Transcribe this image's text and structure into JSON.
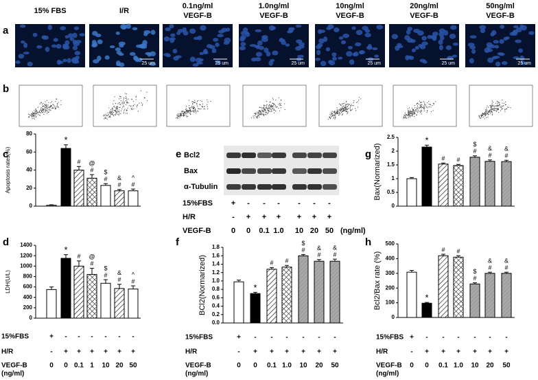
{
  "panel_letters": [
    "a",
    "b",
    "c",
    "d",
    "e",
    "f",
    "g",
    "h"
  ],
  "a": {
    "titles": [
      [
        "15% FBS"
      ],
      [
        "I/R"
      ],
      [
        "0.1ng/ml",
        "VEGF-B"
      ],
      [
        "1.0ng/ml",
        "VEGF-B"
      ],
      [
        "10ng/ml",
        "VEGF-B"
      ],
      [
        "20ng/ml",
        "VEGF-B"
      ],
      [
        "50ng/ml",
        "VEGF-B"
      ]
    ],
    "scale_label": "25 um"
  },
  "e": {
    "bands": [
      "Bcl2",
      "Bax",
      "α-Tubulin"
    ],
    "conditions": [
      {
        "label": "15%FBS",
        "values": [
          "+",
          "-",
          "-",
          "-",
          "-",
          "-",
          "-"
        ]
      },
      {
        "label": "H/R",
        "values": [
          "-",
          "+",
          "+",
          "+",
          "+",
          "+",
          "+"
        ]
      },
      {
        "label": "VEGF-B",
        "values": [
          "0",
          "0",
          "0.1",
          "1.0",
          "10",
          "20",
          "50"
        ]
      }
    ],
    "unit": "(ng/ml)"
  },
  "chart_data": [
    {
      "type": "bar",
      "ylabel": "Apoptosis rates(%)",
      "values": [
        1,
        64,
        40,
        31,
        23,
        17,
        17
      ],
      "errors": [
        0.5,
        4,
        4,
        4,
        2,
        1.5,
        2
      ],
      "annotations": [
        null,
        [
          "*"
        ],
        [
          "#"
        ],
        [
          "@",
          "#"
        ],
        [
          "$",
          "#"
        ],
        [
          "&",
          "#"
        ],
        [
          "^",
          "#"
        ]
      ],
      "fills": [
        "white",
        "black",
        "hatch",
        "cross",
        "white",
        "hatch",
        "white"
      ],
      "ylim": [
        0,
        80
      ],
      "yticks": [
        0,
        20,
        40,
        60,
        80
      ]
    },
    {
      "type": "bar",
      "ylabel": "LDH(U/L)",
      "values": [
        550,
        1150,
        1000,
        840,
        670,
        570,
        560
      ],
      "errors": [
        50,
        70,
        100,
        120,
        70,
        80,
        60
      ],
      "annotations": [
        null,
        [
          "*"
        ],
        [
          "#"
        ],
        [
          "@",
          "#"
        ],
        [
          "$",
          "#"
        ],
        [
          "&",
          "#"
        ],
        [
          "^",
          "#"
        ]
      ],
      "fills": [
        "white",
        "black",
        "hatch",
        "cross",
        "white",
        "hatch",
        "white"
      ],
      "ylim": [
        0,
        1400
      ],
      "yticks": [
        0,
        200,
        400,
        600,
        800,
        1000,
        1200,
        1400
      ],
      "conditions": [
        {
          "label": "15%FBS",
          "values": [
            "+",
            "-",
            "-",
            "-",
            "-",
            "-",
            "-"
          ]
        },
        {
          "label": "H/R",
          "values": [
            "-",
            "+",
            "+",
            "+",
            "+",
            "+",
            "+"
          ]
        },
        {
          "label": "VEGF-B",
          "unit": "(ng/ml)",
          "values": [
            "0",
            "0",
            "0.1",
            "1",
            "10",
            "20",
            "50"
          ]
        }
      ]
    },
    {
      "type": "bar",
      "ylabel": "BCl2(Normarized)",
      "values": [
        0.98,
        0.7,
        1.28,
        1.33,
        1.6,
        1.47,
        1.47
      ],
      "errors": [
        0.04,
        0.03,
        0.04,
        0.04,
        0.03,
        0.04,
        0.05
      ],
      "annotations": [
        null,
        [
          "*"
        ],
        [
          "#"
        ],
        [
          "#"
        ],
        [
          "$",
          "#"
        ],
        [
          "&",
          "#"
        ],
        [
          "&",
          "#"
        ]
      ],
      "fills": [
        "white",
        "black",
        "hatch",
        "cross",
        "gray",
        "gray",
        "gray"
      ],
      "ylim": [
        0,
        1.8
      ],
      "yticks": [
        {
          "value": 0,
          "label": "0.0"
        },
        0.2,
        0.4,
        0.6,
        0.8,
        {
          "value": 1,
          "label": "1.0"
        },
        1.2,
        1.4,
        1.6,
        1.8
      ],
      "conditions": [
        {
          "label": "15%FBS",
          "values": [
            "+",
            "-",
            "-",
            "-",
            "-",
            "-",
            "-"
          ]
        },
        {
          "label": "H/R",
          "values": [
            "-",
            "+",
            "+",
            "+",
            "+",
            "+",
            "+"
          ]
        },
        {
          "label": "VEGF-B",
          "unit": "(ng/ml)",
          "values": [
            "0",
            "0",
            "0.1",
            "1.0",
            "10",
            "20",
            "50"
          ]
        }
      ]
    },
    {
      "type": "bar",
      "ylabel": "Bax(Normarized)",
      "values": [
        1.0,
        2.15,
        1.53,
        1.48,
        1.78,
        1.63,
        1.62
      ],
      "errors": [
        0.04,
        0.07,
        0.04,
        0.04,
        0.05,
        0.05,
        0.05
      ],
      "annotations": [
        null,
        [
          "*"
        ],
        [
          "#"
        ],
        [
          "#"
        ],
        [
          "$",
          "#"
        ],
        [
          "&",
          "#"
        ],
        [
          "&",
          "#"
        ]
      ],
      "fills": [
        "white",
        "black",
        "hatch",
        "cross",
        "gray",
        "gray",
        "gray"
      ],
      "ylim": [
        0,
        2.5
      ],
      "yticks": [
        0,
        0.5,
        1,
        1.5,
        2,
        2.5
      ]
    },
    {
      "type": "bar",
      "ylabel": "Bcl2/Bax rate (%)",
      "values": [
        308,
        97,
        420,
        410,
        228,
        300,
        300
      ],
      "errors": [
        12,
        5,
        10,
        10,
        8,
        8,
        8
      ],
      "annotations": [
        null,
        [
          "*"
        ],
        [
          "#"
        ],
        [
          "#"
        ],
        [
          "$",
          "#"
        ],
        [
          "&",
          "#"
        ],
        [
          "&",
          "#"
        ]
      ],
      "fills": [
        "white",
        "black",
        "hatch",
        "cross",
        "gray",
        "gray",
        "gray"
      ],
      "ylim": [
        0,
        500
      ],
      "yticks": [
        0,
        100,
        200,
        300,
        400,
        500
      ],
      "conditions": [
        {
          "label": "15%FBS",
          "values": [
            "+",
            "-",
            "-",
            "-",
            "-",
            "-",
            "-"
          ]
        },
        {
          "label": "H/R",
          "values": [
            "-",
            "+",
            "+",
            "+",
            "+",
            "+",
            "+"
          ]
        },
        {
          "label": "VEGF-B",
          "unit": "(ng/ml)",
          "values": [
            "0",
            "0",
            "0.1",
            "1.0",
            "10",
            "20",
            "50"
          ]
        }
      ]
    }
  ]
}
